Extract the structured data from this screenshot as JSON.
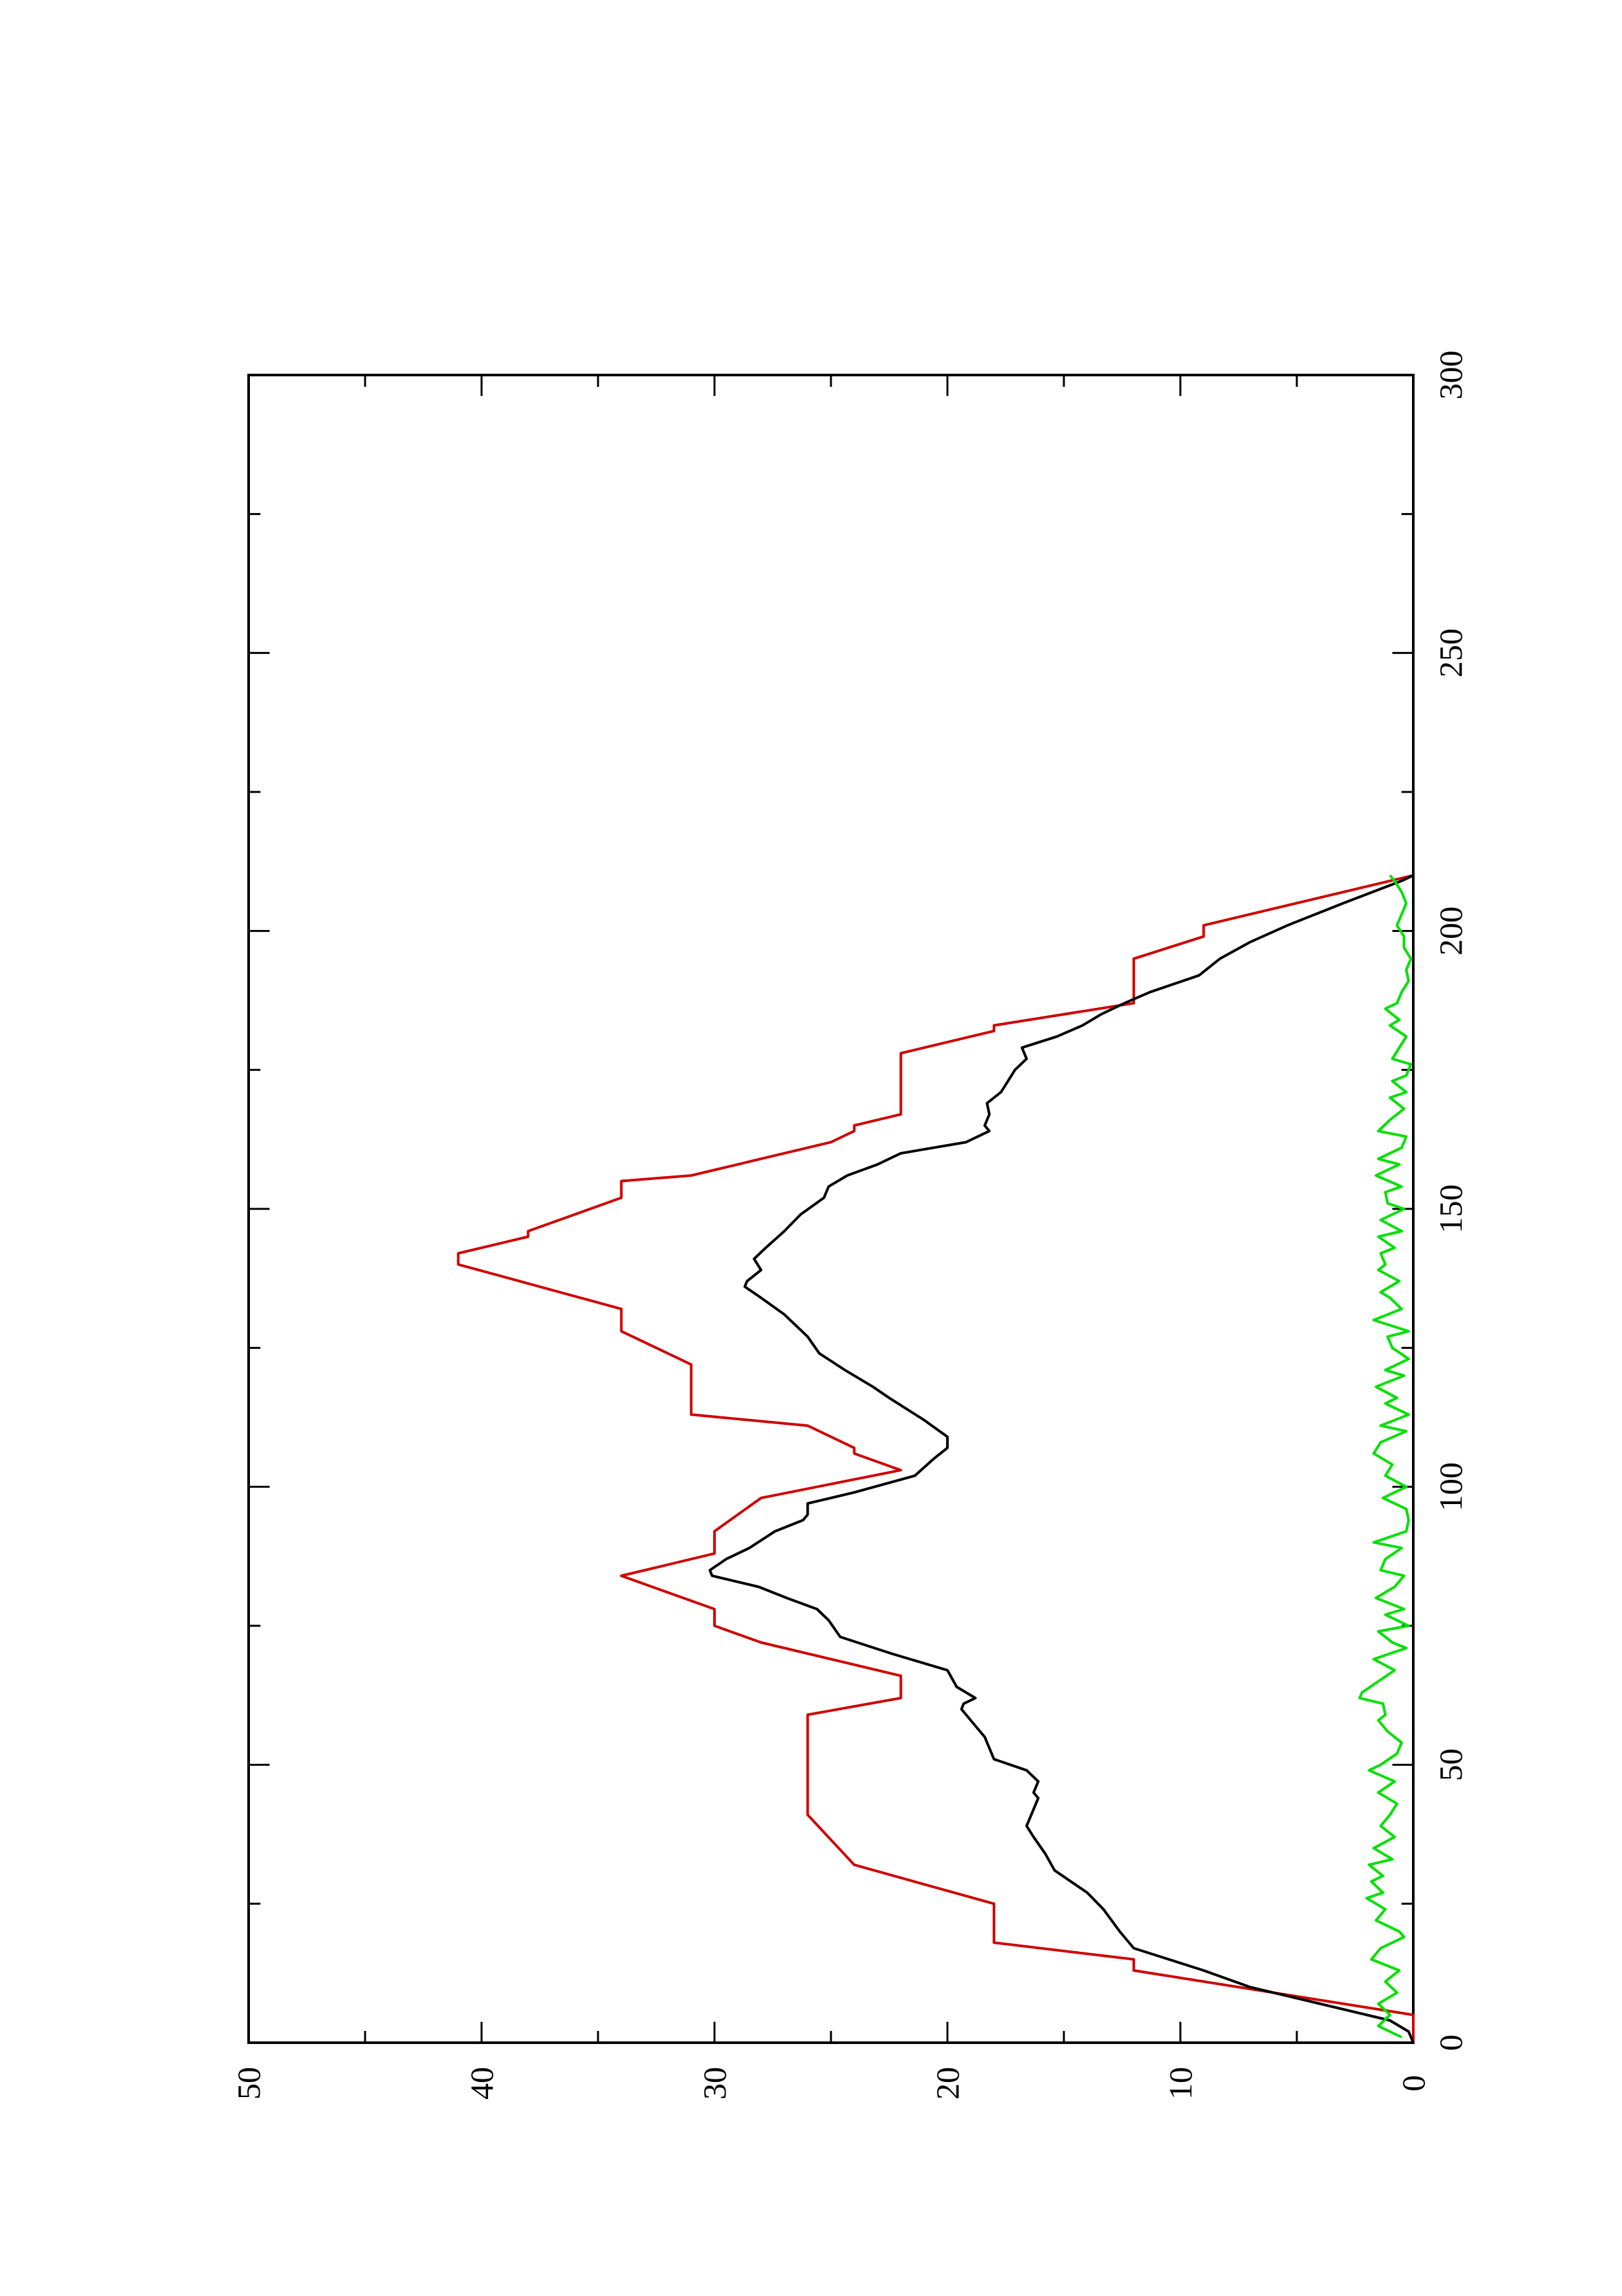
{
  "chart_data": {
    "type": "line",
    "orientation": "rotated-90-ccw",
    "title": "",
    "xlabel": "",
    "ylabel": "",
    "xlim": [
      0,
      300
    ],
    "ylim": [
      0,
      50
    ],
    "x_ticks": [
      0,
      50,
      100,
      150,
      200,
      250,
      300
    ],
    "y_ticks": [
      0,
      10,
      20,
      30,
      40,
      50
    ],
    "x_minor_step": 25,
    "y_minor_step": 5,
    "grid": false,
    "legend": "none",
    "series": [
      {
        "color": "#d00000",
        "points": [
          [
            0,
            0
          ],
          [
            5,
            0
          ],
          [
            13,
            12
          ],
          [
            15,
            12
          ],
          [
            18,
            18
          ],
          [
            25,
            18
          ],
          [
            32,
            24
          ],
          [
            41,
            26
          ],
          [
            59,
            26
          ],
          [
            62,
            22
          ],
          [
            66,
            22
          ],
          [
            72,
            28
          ],
          [
            75,
            30
          ],
          [
            78,
            30
          ],
          [
            84,
            34
          ],
          [
            88,
            30
          ],
          [
            92,
            30
          ],
          [
            98,
            28
          ],
          [
            103,
            22
          ],
          [
            106,
            24
          ],
          [
            107,
            24
          ],
          [
            111,
            26
          ],
          [
            113,
            31
          ],
          [
            122,
            31
          ],
          [
            128,
            34
          ],
          [
            132,
            34
          ],
          [
            140,
            41
          ],
          [
            142,
            41
          ],
          [
            145,
            38
          ],
          [
            146,
            38
          ],
          [
            152,
            34
          ],
          [
            155,
            34
          ],
          [
            156,
            31
          ],
          [
            162,
            25
          ],
          [
            164,
            24
          ],
          [
            165,
            24
          ],
          [
            167,
            22
          ],
          [
            178,
            22
          ],
          [
            179,
            21
          ],
          [
            182,
            18
          ],
          [
            183,
            18
          ],
          [
            187,
            12
          ],
          [
            195,
            12
          ],
          [
            199,
            9
          ],
          [
            201,
            9
          ],
          [
            210,
            0
          ]
        ]
      },
      {
        "color": "#000000",
        "points": [
          [
            0,
            0
          ],
          [
            2,
            0.2
          ],
          [
            4,
            1
          ],
          [
            7,
            4
          ],
          [
            10,
            7
          ],
          [
            13,
            9
          ],
          [
            17,
            12
          ],
          [
            20,
            12.6
          ],
          [
            24,
            13.3
          ],
          [
            27,
            14
          ],
          [
            31,
            15.4
          ],
          [
            34,
            15.8
          ],
          [
            37,
            16.3
          ],
          [
            39,
            16.6
          ],
          [
            42,
            16.3
          ],
          [
            44,
            16.1
          ],
          [
            45,
            16.3
          ],
          [
            47,
            16.1
          ],
          [
            49,
            16.6
          ],
          [
            51,
            18
          ],
          [
            55,
            18.4
          ],
          [
            58,
            19
          ],
          [
            60,
            19.4
          ],
          [
            61,
            19.3
          ],
          [
            62,
            18.8
          ],
          [
            64,
            19.6
          ],
          [
            67,
            20
          ],
          [
            70,
            22.4
          ],
          [
            73,
            24.6
          ],
          [
            76,
            25.1
          ],
          [
            78,
            25.6
          ],
          [
            80,
            26.9
          ],
          [
            82,
            28.1
          ],
          [
            84,
            30.1
          ],
          [
            85,
            30.2
          ],
          [
            87,
            29.5
          ],
          [
            89,
            28.5
          ],
          [
            92,
            27.4
          ],
          [
            94,
            26.2
          ],
          [
            95,
            26
          ],
          [
            97,
            26
          ],
          [
            99,
            24
          ],
          [
            102,
            21.4
          ],
          [
            105,
            20.6
          ],
          [
            107,
            20
          ],
          [
            109,
            20
          ],
          [
            112,
            21
          ],
          [
            116,
            22.5
          ],
          [
            118,
            23.2
          ],
          [
            121,
            24.4
          ],
          [
            124,
            25.5
          ],
          [
            127,
            26
          ],
          [
            131,
            27
          ],
          [
            134,
            28
          ],
          [
            136,
            28.7
          ],
          [
            137,
            28.6
          ],
          [
            139,
            28
          ],
          [
            141,
            28.3
          ],
          [
            143,
            27.8
          ],
          [
            146,
            27
          ],
          [
            149,
            26.3
          ],
          [
            152,
            25.3
          ],
          [
            154,
            25.1
          ],
          [
            156,
            24.3
          ],
          [
            158,
            23
          ],
          [
            160,
            22
          ],
          [
            162,
            19.2
          ],
          [
            164,
            18.2
          ],
          [
            165,
            18.4
          ],
          [
            167,
            18.2
          ],
          [
            169,
            18.3
          ],
          [
            171,
            17.7
          ],
          [
            173,
            17.4
          ],
          [
            175,
            17.1
          ],
          [
            177,
            16.6
          ],
          [
            179,
            16.8
          ],
          [
            181,
            15.3
          ],
          [
            183,
            14.2
          ],
          [
            185,
            13.4
          ],
          [
            187,
            12.4
          ],
          [
            189,
            11.3
          ],
          [
            192,
            9.2
          ],
          [
            195,
            8.3
          ],
          [
            198,
            7
          ],
          [
            201,
            5.4
          ],
          [
            205,
            3
          ],
          [
            209,
            0.5
          ],
          [
            210,
            0
          ]
        ]
      },
      {
        "color": "#00e000",
        "points": [
          [
            1,
            0.5
          ],
          [
            3,
            1.5
          ],
          [
            5,
            1
          ],
          [
            7,
            1.5
          ],
          [
            9,
            0.7
          ],
          [
            11,
            1.2
          ],
          [
            13,
            0.6
          ],
          [
            15,
            1.8
          ],
          [
            17,
            1.4
          ],
          [
            19,
            0.4
          ],
          [
            20,
            0.6
          ],
          [
            22,
            1.6
          ],
          [
            24,
            1.2
          ],
          [
            26,
            2
          ],
          [
            27,
            1.3
          ],
          [
            29,
            1.8
          ],
          [
            30,
            1.3
          ],
          [
            32,
            1.9
          ],
          [
            33,
            0.9
          ],
          [
            35,
            1.7
          ],
          [
            37,
            0.8
          ],
          [
            39,
            1.4
          ],
          [
            41,
            1
          ],
          [
            43,
            0.7
          ],
          [
            45,
            1.5
          ],
          [
            47,
            0.8
          ],
          [
            49,
            1.9
          ],
          [
            50,
            1.4
          ],
          [
            52,
            0.7
          ],
          [
            54,
            0.5
          ],
          [
            56,
            1.1
          ],
          [
            58,
            1.5
          ],
          [
            59,
            1.2
          ],
          [
            61,
            1.3
          ],
          [
            62,
            2.3
          ],
          [
            63,
            2.2
          ],
          [
            65,
            1.5
          ],
          [
            67,
            0.8
          ],
          [
            69,
            1.7
          ],
          [
            71,
            0.3
          ],
          [
            72,
            0.9
          ],
          [
            74,
            1.5
          ],
          [
            75,
            0.2
          ],
          [
            77,
            1.2
          ],
          [
            78,
            0.4
          ],
          [
            80,
            1.6
          ],
          [
            82,
            0.8
          ],
          [
            84,
            0.4
          ],
          [
            85,
            1.4
          ],
          [
            87,
            1.2
          ],
          [
            89,
            0.5
          ],
          [
            90,
            1.7
          ],
          [
            92,
            0.3
          ],
          [
            94,
            0.2
          ],
          [
            96,
            0.3
          ],
          [
            98,
            1.3
          ],
          [
            100,
            0.3
          ],
          [
            102,
            1.2
          ],
          [
            104,
            0.9
          ],
          [
            106,
            1.7
          ],
          [
            108,
            1.4
          ],
          [
            110,
            0.3
          ],
          [
            111,
            1.4
          ],
          [
            113,
            0.2
          ],
          [
            115,
            1.2
          ],
          [
            116,
            0.7
          ],
          [
            118,
            1.6
          ],
          [
            120,
            0.4
          ],
          [
            121,
            1.2
          ],
          [
            123,
            0.2
          ],
          [
            125,
            0.9
          ],
          [
            127,
            1.1
          ],
          [
            128,
            0.2
          ],
          [
            130,
            1.7
          ],
          [
            132,
            0.5
          ],
          [
            134,
            1
          ],
          [
            135,
            1.4
          ],
          [
            137,
            0.6
          ],
          [
            139,
            1.5
          ],
          [
            140,
            1.2
          ],
          [
            142,
            1.4
          ],
          [
            143,
            0.8
          ],
          [
            145,
            1.5
          ],
          [
            146,
            0.5
          ],
          [
            148,
            1.4
          ],
          [
            150,
            0.4
          ],
          [
            151,
            1.1
          ],
          [
            153,
            1.2
          ],
          [
            154,
            0.5
          ],
          [
            156,
            1.6
          ],
          [
            158,
            0.6
          ],
          [
            159,
            1.5
          ],
          [
            161,
            0.5
          ],
          [
            163,
            0.3
          ],
          [
            164,
            1.5
          ],
          [
            166,
            1
          ],
          [
            168,
            0.4
          ],
          [
            170,
            1
          ],
          [
            171,
            0.3
          ],
          [
            173,
            0.9
          ],
          [
            174,
            0.3
          ],
          [
            176,
            0.1
          ],
          [
            177,
            0.9
          ],
          [
            179,
            0.6
          ],
          [
            181,
            0.3
          ],
          [
            183,
            1
          ],
          [
            184,
            0.6
          ],
          [
            186,
            1.2
          ],
          [
            187,
            0.7
          ],
          [
            189,
            0.5
          ],
          [
            191,
            0.2
          ],
          [
            193,
            0.3
          ],
          [
            195,
            0.1
          ],
          [
            197,
            0.4
          ],
          [
            199,
            0.4
          ],
          [
            201,
            0.7
          ],
          [
            203,
            0.5
          ],
          [
            205,
            0.3
          ],
          [
            207,
            0.5
          ],
          [
            209,
            0.8
          ],
          [
            210,
            1
          ]
        ]
      }
    ]
  }
}
